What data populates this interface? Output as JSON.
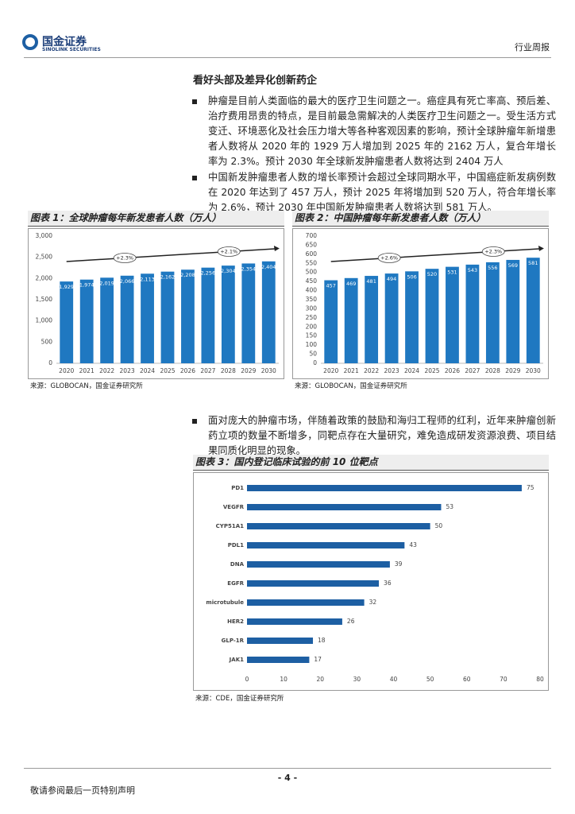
{
  "header": {
    "logo_cn": "国金证券",
    "logo_en": "SINOLINK SECURITIES",
    "section": "行业周报"
  },
  "section_title": "看好头部及差异化创新药企",
  "bullets": [
    "肿瘤是目前人类面临的最大的医疗卫生问题之一。癌症具有死亡率高、预后差、治疗费用昂贵的特点，是目前最急需解决的人类医疗卫生问题之一。受生活方式变迁、环境恶化及社会压力增大等各种客观因素的影响，预计全球肿瘤年新增患者人数将从 2020 年的 1929 万人增加到 2025 年的 2162 万人，复合年增长率为 2.3%。预计 2030 年全球新发肿瘤患者人数将达到 2404 万人",
    "中国新发肿瘤患者人数的增长率预计会超过全球同期水平，中国癌症新发病例数在 2020 年达到了 457 万人，预计 2025 年将增加到 520 万人，符合年增长率为 2.6%，预计 2030 年中国新发肿瘤患者人数将达到 581 万人。",
    "面对庞大的肿瘤市场，伴随着政策的鼓励和海归工程师的红利，近年来肿瘤创新药立项的数量不断增多，同靶点存在大量研究，难免造成研发资源浪费、项目结果同质化明显的现象。"
  ],
  "chart_data": [
    {
      "type": "bar",
      "title": "图表 1：全球肿瘤每年新发患者人数（万人）",
      "source": "来源：GLOBOCAN，国金证券研究所",
      "color": "#1f78c1",
      "categories": [
        "2020",
        "2021",
        "2022",
        "2023",
        "2024",
        "2025",
        "2026",
        "2027",
        "2028",
        "2029",
        "2030"
      ],
      "values": [
        1929,
        1974,
        2019,
        2066,
        2113,
        2162,
        2208,
        2256,
        2304,
        2354,
        2404
      ],
      "value_labels": [
        "1,929",
        "1,974",
        "2,019",
        "2,066",
        "2,113",
        "2,162",
        "2,208",
        "2,256",
        "2,304",
        "2,354",
        "2,404"
      ],
      "ylim": [
        0,
        3000
      ],
      "yticks": [
        0,
        500,
        {
          "value": 1000,
          "label": "1,000"
        },
        {
          "value": 1500,
          "label": "1,500"
        },
        {
          "value": 2000,
          "label": "2,000"
        },
        {
          "value": 2500,
          "label": "2,500"
        },
        {
          "value": 3000,
          "label": "3,000"
        }
      ],
      "annotations": [
        "+2.3%",
        "+2.1%"
      ]
    },
    {
      "type": "bar",
      "title": "图表 2：中国肿瘤每年新发患者人数（万人）",
      "source": "来源：GLOBOCAN，国金证券研究所",
      "color": "#1f78c1",
      "categories": [
        "2020",
        "2021",
        "2022",
        "2023",
        "2024",
        "2025",
        "2026",
        "2027",
        "2028",
        "2029",
        "2030"
      ],
      "values": [
        457,
        469,
        481,
        494,
        506,
        520,
        531,
        543,
        556,
        569,
        581
      ],
      "ylim": [
        0,
        700
      ],
      "yticks": [
        0,
        50,
        100,
        150,
        200,
        250,
        300,
        350,
        400,
        450,
        500,
        550,
        600,
        650,
        700
      ],
      "annotations": [
        "+2.6%",
        "+2.3%"
      ]
    },
    {
      "type": "barh",
      "title": "图表 3：国内登记临床试验的前 10 位靶点",
      "source": "来源：CDE，国金证券研究所",
      "color": "#1d5fa3",
      "categories": [
        "PD1",
        "VEGFR",
        "CYP51A1",
        "PDL1",
        "DNA",
        "EGFR",
        "microtubule",
        "HER2",
        "GLP-1R",
        "JAK1"
      ],
      "values": [
        75,
        53,
        50,
        43,
        39,
        36,
        32,
        26,
        18,
        17
      ],
      "xlim": [
        0,
        80
      ],
      "xticks": [
        0,
        10,
        20,
        30,
        40,
        50,
        60,
        70,
        80
      ]
    }
  ],
  "footer": {
    "page": "- 4 -",
    "disclaimer": "敬请参阅最后一页特别声明"
  }
}
